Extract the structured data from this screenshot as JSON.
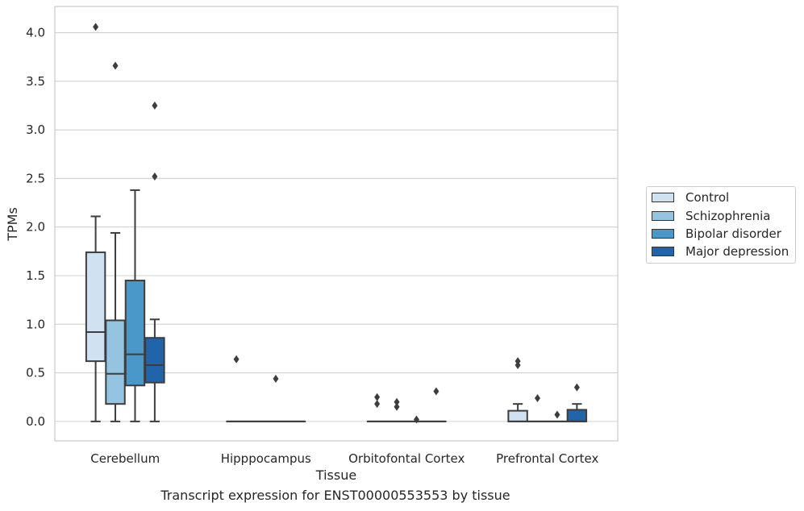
{
  "chart_data": {
    "type": "box",
    "xlabel": "Tissue",
    "ylabel": "TPMs",
    "ylim": [
      -0.2,
      4.27
    ],
    "yticks": [
      "0.0",
      "0.5",
      "1.0",
      "1.5",
      "2.0",
      "2.5",
      "3.0",
      "3.5",
      "4.0"
    ],
    "categories": [
      "Cerebellum",
      "Hipppocampus",
      "Orbitofontal Cortex",
      "Prefrontal Cortex"
    ],
    "legend_position": "right",
    "series": [
      {
        "name": "Control",
        "color": "#d0e1f2",
        "boxes": [
          {
            "min": 0.0,
            "q1": 0.62,
            "median": 0.92,
            "q3": 1.74,
            "max": 2.11,
            "outliers": [
              4.06
            ]
          },
          {
            "min": 0.0,
            "q1": 0.0,
            "median": 0.0,
            "q3": 0.0,
            "max": 0.0,
            "outliers": [
              0.64
            ]
          },
          {
            "min": 0.0,
            "q1": 0.0,
            "median": 0.0,
            "q3": 0.0,
            "max": 0.0,
            "outliers": [
              0.25,
              0.18
            ]
          },
          {
            "min": 0.0,
            "q1": 0.0,
            "median": 0.0,
            "q3": 0.11,
            "max": 0.18,
            "outliers": [
              0.62,
              0.58
            ]
          }
        ]
      },
      {
        "name": "Schizophrenia",
        "color": "#94c4df",
        "boxes": [
          {
            "min": 0.0,
            "q1": 0.18,
            "median": 0.49,
            "q3": 1.04,
            "max": 1.94,
            "outliers": [
              3.66
            ]
          },
          {
            "min": 0.0,
            "q1": 0.0,
            "median": 0.0,
            "q3": 0.0,
            "max": 0.0,
            "outliers": []
          },
          {
            "min": 0.0,
            "q1": 0.0,
            "median": 0.0,
            "q3": 0.0,
            "max": 0.0,
            "outliers": [
              0.2,
              0.15
            ]
          },
          {
            "min": 0.0,
            "q1": 0.0,
            "median": 0.0,
            "q3": 0.0,
            "max": 0.0,
            "outliers": [
              0.24
            ]
          }
        ]
      },
      {
        "name": "Bipolar disorder",
        "color": "#4a98c9",
        "boxes": [
          {
            "min": 0.0,
            "q1": 0.37,
            "median": 0.69,
            "q3": 1.45,
            "max": 2.38,
            "outliers": []
          },
          {
            "min": 0.0,
            "q1": 0.0,
            "median": 0.0,
            "q3": 0.0,
            "max": 0.0,
            "outliers": [
              0.44
            ]
          },
          {
            "min": 0.0,
            "q1": 0.0,
            "median": 0.0,
            "q3": 0.0,
            "max": 0.0,
            "outliers": [
              0.02
            ]
          },
          {
            "min": 0.0,
            "q1": 0.0,
            "median": 0.0,
            "q3": 0.0,
            "max": 0.0,
            "outliers": [
              0.07
            ]
          }
        ]
      },
      {
        "name": "Major depression",
        "color": "#2264a9",
        "boxes": [
          {
            "min": 0.0,
            "q1": 0.4,
            "median": 0.58,
            "q3": 0.86,
            "max": 1.05,
            "outliers": [
              3.25,
              2.52
            ]
          },
          {
            "min": 0.0,
            "q1": 0.0,
            "median": 0.0,
            "q3": 0.0,
            "max": 0.0,
            "outliers": []
          },
          {
            "min": 0.0,
            "q1": 0.0,
            "median": 0.0,
            "q3": 0.0,
            "max": 0.0,
            "outliers": [
              0.31
            ]
          },
          {
            "min": 0.0,
            "q1": 0.0,
            "median": 0.0,
            "q3": 0.12,
            "max": 0.18,
            "outliers": [
              0.35
            ]
          }
        ]
      }
    ]
  },
  "caption": "Transcript expression for ENST00000553553 by tissue"
}
